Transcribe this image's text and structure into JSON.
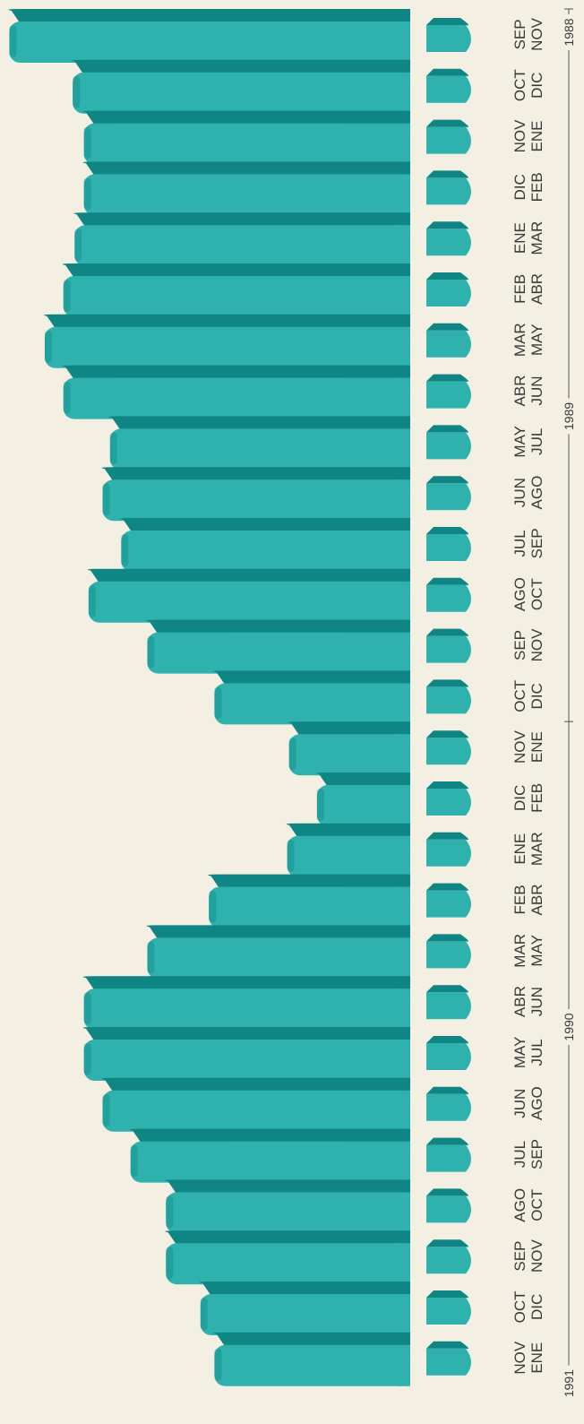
{
  "colors": {
    "background": "#f3efe2",
    "bar_face": "#2fb1ae",
    "bar_side": "#128d8b",
    "bar_top": "#0f8584",
    "text": "#3a3a3a",
    "axis": "#555555"
  },
  "chart_data": {
    "type": "bar",
    "orientation": "horizontal",
    "style": "3d",
    "title": "",
    "xlabel": "",
    "ylabel": "",
    "grid": false,
    "legend": "none",
    "categories": [
      [
        "SEP",
        "NOV"
      ],
      [
        "OCT",
        "DIC"
      ],
      [
        "NOV",
        "ENE"
      ],
      [
        "DIC",
        "FEB"
      ],
      [
        "ENE",
        "MAR"
      ],
      [
        "FEB",
        "ABR"
      ],
      [
        "MAR",
        "MAY"
      ],
      [
        "ABR",
        "JUN"
      ],
      [
        "MAY",
        "JUL"
      ],
      [
        "JUN",
        "AGO"
      ],
      [
        "JUL",
        "SEP"
      ],
      [
        "AGO",
        "OCT"
      ],
      [
        "SEP",
        "NOV"
      ],
      [
        "OCT",
        "DIC"
      ],
      [
        "NOV",
        "ENE"
      ],
      [
        "DIC",
        "FEB"
      ],
      [
        "ENE",
        "MAR"
      ],
      [
        "FEB",
        "ABR"
      ],
      [
        "MAR",
        "MAY"
      ],
      [
        "ABR",
        "JUN"
      ],
      [
        "MAY",
        "JUL"
      ],
      [
        "JUN",
        "AGO"
      ],
      [
        "JUL",
        "SEP"
      ],
      [
        "AGO",
        "OCT"
      ],
      [
        "SEP",
        "NOV"
      ],
      [
        "OCT",
        "DIC"
      ],
      [
        "NOV",
        "ENE"
      ]
    ],
    "values": [
      430,
      362,
      350,
      350,
      360,
      372,
      392,
      372,
      322,
      330,
      310,
      345,
      282,
      210,
      130,
      100,
      132,
      216,
      282,
      350,
      350,
      330,
      300,
      262,
      262,
      225,
      210
    ],
    "xlim": [
      0,
      440
    ],
    "year_markers": [
      {
        "label": "1988",
        "position": -0.5
      },
      {
        "label": "1989",
        "position": 7.5
      },
      {
        "label": "1990",
        "position": 19.5
      },
      {
        "label": "1991",
        "position": 26.5
      }
    ],
    "year_ticks": [
      -0.5,
      13.5,
      26.5
    ]
  }
}
